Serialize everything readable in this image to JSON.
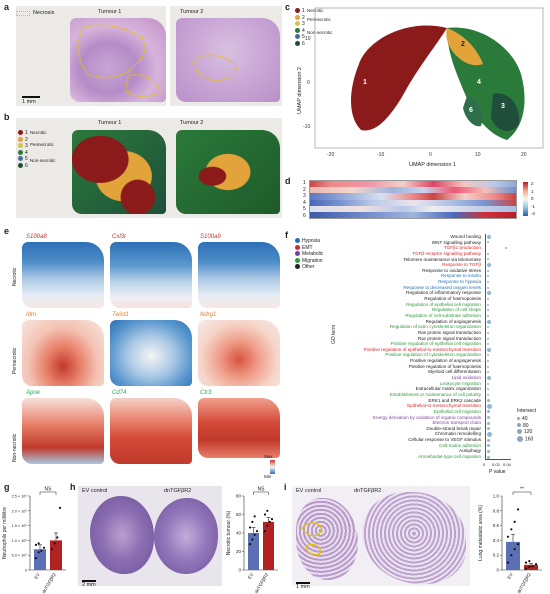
{
  "panel_a": {
    "label": "a",
    "legend": "Necrosis",
    "tumour1": "Tumour 1",
    "tumour2": "Tumour 2",
    "scalebar": "1 mm"
  },
  "panel_b": {
    "label": "b",
    "tumour1": "Tumour 1",
    "tumour2": "Tumour 2",
    "legend": [
      {
        "num": "1",
        "color": "#8b1a1a"
      },
      {
        "num": "2",
        "color": "#e2a33a"
      },
      {
        "num": "3",
        "color": "#d9c24a"
      },
      {
        "num": "4",
        "color": "#2a7a3a"
      },
      {
        "num": "5",
        "color": "#4a6a9a"
      },
      {
        "num": "6",
        "color": "#1f4f3a"
      }
    ],
    "group_necrotic": "Necrotic",
    "group_perinecrotic": "Perinecrotic",
    "group_nonnecrotic": "Non-necrotic"
  },
  "panel_c": {
    "label": "c",
    "legend": [
      {
        "num": "1",
        "color": "#8b1a1a"
      },
      {
        "num": "2",
        "color": "#e2a33a"
      },
      {
        "num": "3",
        "color": "#d9c24a"
      },
      {
        "num": "4",
        "color": "#2a7a3a"
      },
      {
        "num": "5",
        "color": "#4a6a9a"
      },
      {
        "num": "6",
        "color": "#1f4f3a"
      }
    ],
    "group_necrotic": "Necrotic",
    "group_perinecrotic": "Perinecrotic",
    "group_nonnecrotic": "Non-necrotic",
    "xlabel": "UMAP dimension 1",
    "ylabel": "UMAP dimension 2",
    "xticks": [
      "-20",
      "-10",
      "0",
      "10",
      "20"
    ],
    "yticks": [
      "10",
      "0",
      "-10"
    ],
    "cluster_labels": [
      "1",
      "2",
      "3",
      "4",
      "6"
    ]
  },
  "panel_d": {
    "label": "d",
    "rows": [
      "1",
      "2",
      "3",
      "4",
      "5",
      "6"
    ],
    "scale_ticks": [
      "2",
      "1",
      "0",
      "-1",
      "-2"
    ]
  },
  "panel_e": {
    "label": "e",
    "rows": [
      {
        "group": "Necrotic",
        "genes": [
          "S100a8",
          "Cxl3r",
          "S100a9"
        ],
        "color": "#c0392b"
      },
      {
        "group": "Perinecrotic",
        "genes": [
          "Idm",
          "Twist1",
          "Ndrg1"
        ],
        "color": "#e67e22"
      },
      {
        "group": "Non-necrotic",
        "genes": [
          "Apoe",
          "Cd74",
          "Ctr3"
        ],
        "color": "#27ae60"
      }
    ],
    "max_label": "Max",
    "min_label": "Min"
  },
  "panel_f": {
    "label": "f",
    "legend": [
      {
        "name": "Hypoxia",
        "color": "#2a6fb5"
      },
      {
        "name": "EMT",
        "color": "#d9262a"
      },
      {
        "name": "Metabolic",
        "color": "#7b3fa0"
      },
      {
        "name": "Migration",
        "color": "#2e9a3a"
      },
      {
        "name": "Other",
        "color": "#222222"
      }
    ],
    "ylabel": "GO term",
    "xlabel": "P value",
    "xticks": [
      "0",
      "0.02",
      "0.04"
    ],
    "intersect_title": "Intersect",
    "intersect_sizes": [
      "40",
      "80",
      "120",
      "160"
    ],
    "terms": [
      {
        "t": "Wound healing",
        "c": "#222222"
      },
      {
        "t": "WNT signalling pathway",
        "c": "#222222"
      },
      {
        "t": "TGFβ1 production",
        "c": "#d9262a"
      },
      {
        "t": "TGFβ receptor signalling pathway",
        "c": "#d9262a"
      },
      {
        "t": "Telomere maintenance via telomerase",
        "c": "#222222"
      },
      {
        "t": "Response to TGFβ",
        "c": "#d9262a"
      },
      {
        "t": "Response to oxidative stress",
        "c": "#222222"
      },
      {
        "t": "Response to insulin",
        "c": "#2a6fb5"
      },
      {
        "t": "Response to hypoxia",
        "c": "#2a6fb5"
      },
      {
        "t": "Response to decreased oxygen levels",
        "c": "#2a6fb5"
      },
      {
        "t": "Regulation of inflammatory response",
        "c": "#222222"
      },
      {
        "t": "Regulation of haemopoiesis",
        "c": "#222222"
      },
      {
        "t": "Regulation of epithelial cell migration",
        "c": "#2e9a3a"
      },
      {
        "t": "Regulation of cell shape",
        "c": "#2e9a3a"
      },
      {
        "t": "Regulation of cell-substrate adhesion",
        "c": "#2e9a3a"
      },
      {
        "t": "Regulation of angiogenesis",
        "c": "#222222"
      },
      {
        "t": "Regulation of actin cytoskeleton organization",
        "c": "#2e9a3a"
      },
      {
        "t": "Ras protein signal transduction",
        "c": "#222222"
      },
      {
        "t": "Rac protein signal transduction",
        "c": "#222222"
      },
      {
        "t": "Positive regulation of epithelial cell migration",
        "c": "#2e9a3a"
      },
      {
        "t": "Positive regulation of epithelial-to-mesenchymal transition",
        "c": "#d9262a"
      },
      {
        "t": "Positive regulation of cytoskeleton organization",
        "c": "#2e9a3a"
      },
      {
        "t": "Positive regulation of angiogenesis",
        "c": "#222222"
      },
      {
        "t": "Positive regulation of haemopoiesis",
        "c": "#222222"
      },
      {
        "t": "Myeloid cell differentiation",
        "c": "#222222"
      },
      {
        "t": "Lipid oxidation",
        "c": "#7b3fa0"
      },
      {
        "t": "Leukocyte migration",
        "c": "#2e9a3a"
      },
      {
        "t": "Extracellular matrix organization",
        "c": "#222222"
      },
      {
        "t": "Establishment or maintenance of cell polarity",
        "c": "#2e9a3a"
      },
      {
        "t": "ERK1 and ERK2 cascade",
        "c": "#222222"
      },
      {
        "t": "Epithelial-to-mesenchymal transition",
        "c": "#d9262a"
      },
      {
        "t": "Epithelial cell migration",
        "c": "#2e9a3a"
      },
      {
        "t": "Energy derivation by oxidation of organic compounds",
        "c": "#7b3fa0"
      },
      {
        "t": "Electron transport chain",
        "c": "#7b3fa0"
      },
      {
        "t": "Double-strand break repair",
        "c": "#222222"
      },
      {
        "t": "Chromatin remodelling",
        "c": "#222222"
      },
      {
        "t": "Cellular response to VEGF stimulus",
        "c": "#222222"
      },
      {
        "t": "Cell-matrix adhesion",
        "c": "#2e9a3a"
      },
      {
        "t": "Autophagy",
        "c": "#222222"
      },
      {
        "t": "Amoeboidal-type cell migration",
        "c": "#2e9a3a"
      }
    ]
  },
  "panel_g": {
    "label": "g",
    "ylabel": "Neutrophils per millilitre",
    "yticks": [
      "2.5 × 10⁶",
      "2.0 × 10⁶",
      "1.5 × 10⁶",
      "1.0 × 10⁶",
      "5.0 × 10⁵",
      "0"
    ],
    "sig": "NS",
    "groups": [
      "EV",
      "dnTGFβR2"
    ]
  },
  "panel_h": {
    "label": "h",
    "ev_label": "EV control",
    "dn_label": "dnTGFβR2",
    "scalebar": "2 mm",
    "ylabel": "Necrotic tumour (%)",
    "yticks": [
      "80",
      "60",
      "40",
      "20",
      "0"
    ],
    "sig": "NS",
    "groups": [
      "EV",
      "dnTGFβR2"
    ]
  },
  "panel_i": {
    "label": "i",
    "ev_label": "EV control",
    "dn_label": "dnTGFβR2",
    "scalebar": "1 mm",
    "ylabel": "Lung metastatic area (%)",
    "yticks": [
      "1.0",
      "0.8",
      "0.6",
      "0.4",
      "0.2",
      "0"
    ],
    "sig": "**",
    "groups": [
      "EV",
      "dnTGFβR2"
    ]
  },
  "chart_data": [
    {
      "type": "bar",
      "panel": "g",
      "categories": [
        "EV",
        "dnTGFβR2"
      ],
      "values": [
        700000,
        1000000
      ],
      "errors": [
        150000,
        250000
      ],
      "points": [
        [
          400000,
          600000,
          650000,
          750000,
          850000,
          900000
        ],
        [
          700000,
          900000,
          1100000,
          2100000
        ]
      ],
      "colors": [
        "#5b6fb5",
        "#b22222"
      ],
      "ylim": [
        0,
        2500000
      ],
      "ylabel": "Neutrophils per millilitre"
    },
    {
      "type": "bar",
      "panel": "h",
      "categories": [
        "EV",
        "dnTGFβR2"
      ],
      "values": [
        40,
        52
      ],
      "errors": [
        6,
        5
      ],
      "points": [
        [
          28,
          33,
          38,
          42,
          46,
          52,
          58
        ],
        [
          42,
          48,
          52,
          55,
          60,
          64
        ]
      ],
      "colors": [
        "#5b6fb5",
        "#b22222"
      ],
      "ylim": [
        0,
        80
      ],
      "ylabel": "Necrotic tumour (%)"
    },
    {
      "type": "bar",
      "panel": "i",
      "categories": [
        "EV",
        "dnTGFβR2"
      ],
      "values": [
        0.38,
        0.07
      ],
      "errors": [
        0.1,
        0.02
      ],
      "points": [
        [
          0.1,
          0.2,
          0.28,
          0.35,
          0.45,
          0.55,
          0.65,
          0.82
        ],
        [
          0.02,
          0.04,
          0.05,
          0.08,
          0.1,
          0.12
        ]
      ],
      "colors": [
        "#5b6fb5",
        "#b22222"
      ],
      "ylim": [
        0,
        1.0
      ],
      "ylabel": "Lung metastatic area (%)"
    }
  ]
}
